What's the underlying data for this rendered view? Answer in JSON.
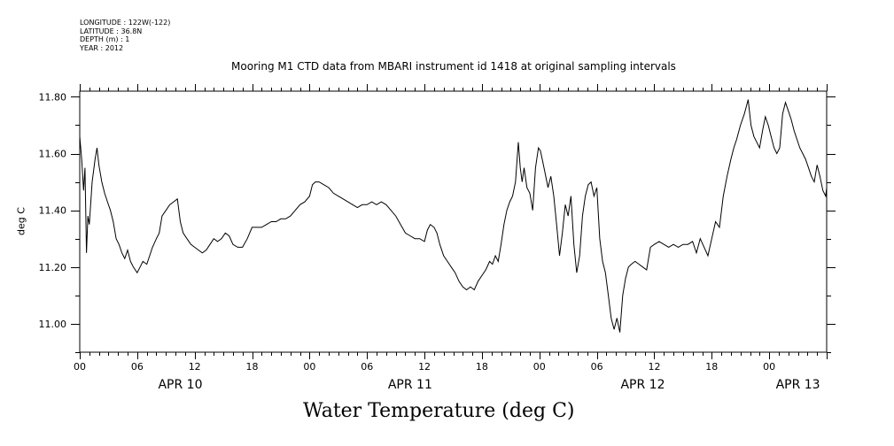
{
  "header_meta": {
    "longitude": "LONGITUDE : 122W(-122)",
    "latitude": "LATITUDE : 36.8N",
    "depth": "DEPTH (m) : 1",
    "year": "YEAR : 2012"
  },
  "chart_data": {
    "type": "line",
    "title": "Mooring M1 CTD data from MBARI instrument id 1418 at original sampling intervals",
    "subtitle": "Water Temperature (deg C)",
    "ylabel": "deg C",
    "xlabel": "",
    "ylim": [
      10.9,
      11.82
    ],
    "xlim": [
      0,
      78
    ],
    "yticks": [
      11.0,
      11.2,
      11.4,
      11.6,
      11.8
    ],
    "ytick_labels": [
      "11.00",
      "11.20",
      "11.40",
      "11.60",
      "11.80"
    ],
    "xtick_hours": [
      0,
      6,
      12,
      18,
      24,
      30,
      36,
      42,
      48,
      54,
      60,
      66,
      72
    ],
    "xtick_labels": [
      "00",
      "06",
      "12",
      "18",
      "00",
      "06",
      "12",
      "18",
      "00",
      "06",
      "12",
      "18",
      "00"
    ],
    "date_labels": [
      {
        "hour": 10.5,
        "label": "APR 10"
      },
      {
        "hour": 34.5,
        "label": "APR 11"
      },
      {
        "hour": 58.8,
        "label": "APR 12"
      },
      {
        "hour": 75.0,
        "label": "APR 13"
      }
    ],
    "grid": false,
    "series": [
      {
        "x_unit": "hours since APR 10 00:00",
        "points": [
          [
            0.0,
            11.66
          ],
          [
            0.2,
            11.58
          ],
          [
            0.4,
            11.47
          ],
          [
            0.55,
            11.55
          ],
          [
            0.7,
            11.25
          ],
          [
            0.85,
            11.38
          ],
          [
            1.0,
            11.35
          ],
          [
            1.3,
            11.5
          ],
          [
            1.6,
            11.58
          ],
          [
            1.8,
            11.62
          ],
          [
            2.0,
            11.56
          ],
          [
            2.3,
            11.5
          ],
          [
            2.6,
            11.46
          ],
          [
            2.9,
            11.43
          ],
          [
            3.2,
            11.4
          ],
          [
            3.5,
            11.36
          ],
          [
            3.8,
            11.3
          ],
          [
            4.1,
            11.28
          ],
          [
            4.4,
            11.25
          ],
          [
            4.7,
            11.23
          ],
          [
            5.0,
            11.26
          ],
          [
            5.3,
            11.22
          ],
          [
            5.6,
            11.2
          ],
          [
            6.0,
            11.18
          ],
          [
            6.3,
            11.2
          ],
          [
            6.6,
            11.22
          ],
          [
            7.0,
            11.21
          ],
          [
            7.3,
            11.24
          ],
          [
            7.6,
            11.27
          ],
          [
            8.0,
            11.3
          ],
          [
            8.3,
            11.32
          ],
          [
            8.6,
            11.38
          ],
          [
            9.0,
            11.4
          ],
          [
            9.4,
            11.42
          ],
          [
            9.8,
            11.43
          ],
          [
            10.2,
            11.44
          ],
          [
            10.5,
            11.36
          ],
          [
            10.8,
            11.32
          ],
          [
            11.2,
            11.3
          ],
          [
            11.6,
            11.28
          ],
          [
            12.0,
            11.27
          ],
          [
            12.4,
            11.26
          ],
          [
            12.8,
            11.25
          ],
          [
            13.2,
            11.26
          ],
          [
            13.6,
            11.28
          ],
          [
            14.0,
            11.3
          ],
          [
            14.4,
            11.29
          ],
          [
            14.8,
            11.3
          ],
          [
            15.2,
            11.32
          ],
          [
            15.6,
            11.31
          ],
          [
            16.0,
            11.28
          ],
          [
            16.5,
            11.27
          ],
          [
            17.0,
            11.27
          ],
          [
            17.5,
            11.3
          ],
          [
            18.0,
            11.34
          ],
          [
            18.5,
            11.34
          ],
          [
            19.0,
            11.34
          ],
          [
            19.5,
            11.35
          ],
          [
            20.0,
            11.36
          ],
          [
            20.5,
            11.36
          ],
          [
            21.0,
            11.37
          ],
          [
            21.5,
            11.37
          ],
          [
            22.0,
            11.38
          ],
          [
            22.5,
            11.4
          ],
          [
            23.0,
            11.42
          ],
          [
            23.5,
            11.43
          ],
          [
            24.0,
            11.45
          ],
          [
            24.3,
            11.49
          ],
          [
            24.6,
            11.5
          ],
          [
            25.0,
            11.5
          ],
          [
            25.5,
            11.49
          ],
          [
            26.0,
            11.48
          ],
          [
            26.5,
            11.46
          ],
          [
            27.0,
            11.45
          ],
          [
            27.5,
            11.44
          ],
          [
            28.0,
            11.43
          ],
          [
            28.5,
            11.42
          ],
          [
            29.0,
            11.41
          ],
          [
            29.5,
            11.42
          ],
          [
            30.0,
            11.42
          ],
          [
            30.5,
            11.43
          ],
          [
            31.0,
            11.42
          ],
          [
            31.5,
            11.43
          ],
          [
            32.0,
            11.42
          ],
          [
            32.5,
            11.4
          ],
          [
            33.0,
            11.38
          ],
          [
            33.5,
            11.35
          ],
          [
            34.0,
            11.32
          ],
          [
            34.5,
            11.31
          ],
          [
            35.0,
            11.3
          ],
          [
            35.5,
            11.3
          ],
          [
            36.0,
            11.29
          ],
          [
            36.3,
            11.33
          ],
          [
            36.6,
            11.35
          ],
          [
            37.0,
            11.34
          ],
          [
            37.3,
            11.32
          ],
          [
            37.6,
            11.28
          ],
          [
            38.0,
            11.24
          ],
          [
            38.4,
            11.22
          ],
          [
            38.8,
            11.2
          ],
          [
            39.2,
            11.18
          ],
          [
            39.6,
            11.15
          ],
          [
            40.0,
            11.13
          ],
          [
            40.4,
            11.12
          ],
          [
            40.8,
            11.13
          ],
          [
            41.2,
            11.12
          ],
          [
            41.6,
            11.15
          ],
          [
            42.0,
            11.17
          ],
          [
            42.4,
            11.19
          ],
          [
            42.8,
            11.22
          ],
          [
            43.1,
            11.21
          ],
          [
            43.4,
            11.24
          ],
          [
            43.7,
            11.22
          ],
          [
            44.0,
            11.28
          ],
          [
            44.3,
            11.35
          ],
          [
            44.6,
            11.4
          ],
          [
            44.9,
            11.43
          ],
          [
            45.2,
            11.45
          ],
          [
            45.5,
            11.5
          ],
          [
            45.8,
            11.64
          ],
          [
            46.0,
            11.55
          ],
          [
            46.2,
            11.5
          ],
          [
            46.4,
            11.55
          ],
          [
            46.7,
            11.48
          ],
          [
            47.0,
            11.46
          ],
          [
            47.3,
            11.4
          ],
          [
            47.6,
            11.55
          ],
          [
            47.9,
            11.62
          ],
          [
            48.1,
            11.61
          ],
          [
            48.3,
            11.58
          ],
          [
            48.6,
            11.53
          ],
          [
            48.9,
            11.48
          ],
          [
            49.2,
            11.52
          ],
          [
            49.5,
            11.45
          ],
          [
            49.8,
            11.35
          ],
          [
            50.1,
            11.24
          ],
          [
            50.4,
            11.32
          ],
          [
            50.7,
            11.42
          ],
          [
            51.0,
            11.38
          ],
          [
            51.3,
            11.45
          ],
          [
            51.6,
            11.28
          ],
          [
            51.9,
            11.18
          ],
          [
            52.2,
            11.24
          ],
          [
            52.5,
            11.38
          ],
          [
            52.8,
            11.45
          ],
          [
            53.1,
            11.49
          ],
          [
            53.4,
            11.5
          ],
          [
            53.7,
            11.45
          ],
          [
            54.0,
            11.48
          ],
          [
            54.3,
            11.3
          ],
          [
            54.6,
            11.22
          ],
          [
            54.9,
            11.18
          ],
          [
            55.2,
            11.1
          ],
          [
            55.5,
            11.02
          ],
          [
            55.8,
            10.98
          ],
          [
            56.1,
            11.02
          ],
          [
            56.4,
            10.97
          ],
          [
            56.7,
            11.1
          ],
          [
            57.0,
            11.16
          ],
          [
            57.3,
            11.2
          ],
          [
            57.6,
            11.21
          ],
          [
            58.0,
            11.22
          ],
          [
            58.4,
            11.21
          ],
          [
            58.8,
            11.2
          ],
          [
            59.2,
            11.19
          ],
          [
            59.6,
            11.27
          ],
          [
            60.0,
            11.28
          ],
          [
            60.5,
            11.29
          ],
          [
            61.0,
            11.28
          ],
          [
            61.5,
            11.27
          ],
          [
            62.0,
            11.28
          ],
          [
            62.5,
            11.27
          ],
          [
            63.0,
            11.28
          ],
          [
            63.5,
            11.28
          ],
          [
            64.0,
            11.29
          ],
          [
            64.4,
            11.25
          ],
          [
            64.8,
            11.3
          ],
          [
            65.2,
            11.27
          ],
          [
            65.6,
            11.24
          ],
          [
            66.0,
            11.3
          ],
          [
            66.4,
            11.36
          ],
          [
            66.8,
            11.34
          ],
          [
            67.2,
            11.45
          ],
          [
            67.6,
            11.52
          ],
          [
            68.0,
            11.58
          ],
          [
            68.3,
            11.62
          ],
          [
            68.6,
            11.65
          ],
          [
            69.0,
            11.7
          ],
          [
            69.4,
            11.74
          ],
          [
            69.8,
            11.79
          ],
          [
            70.1,
            11.7
          ],
          [
            70.4,
            11.66
          ],
          [
            70.7,
            11.64
          ],
          [
            71.0,
            11.62
          ],
          [
            71.3,
            11.68
          ],
          [
            71.6,
            11.73
          ],
          [
            71.9,
            11.7
          ],
          [
            72.2,
            11.66
          ],
          [
            72.5,
            11.62
          ],
          [
            72.8,
            11.6
          ],
          [
            73.1,
            11.62
          ],
          [
            73.4,
            11.74
          ],
          [
            73.7,
            11.78
          ],
          [
            74.0,
            11.75
          ],
          [
            74.3,
            11.72
          ],
          [
            74.6,
            11.68
          ],
          [
            74.9,
            11.65
          ],
          [
            75.2,
            11.62
          ],
          [
            75.5,
            11.6
          ],
          [
            75.8,
            11.58
          ],
          [
            76.1,
            11.55
          ],
          [
            76.4,
            11.52
          ],
          [
            76.7,
            11.5
          ],
          [
            77.0,
            11.56
          ],
          [
            77.3,
            11.52
          ],
          [
            77.6,
            11.47
          ],
          [
            77.9,
            11.45
          ],
          [
            78.2,
            11.48
          ],
          [
            78.5,
            11.43
          ],
          [
            78.8,
            11.4
          ]
        ]
      }
    ]
  }
}
